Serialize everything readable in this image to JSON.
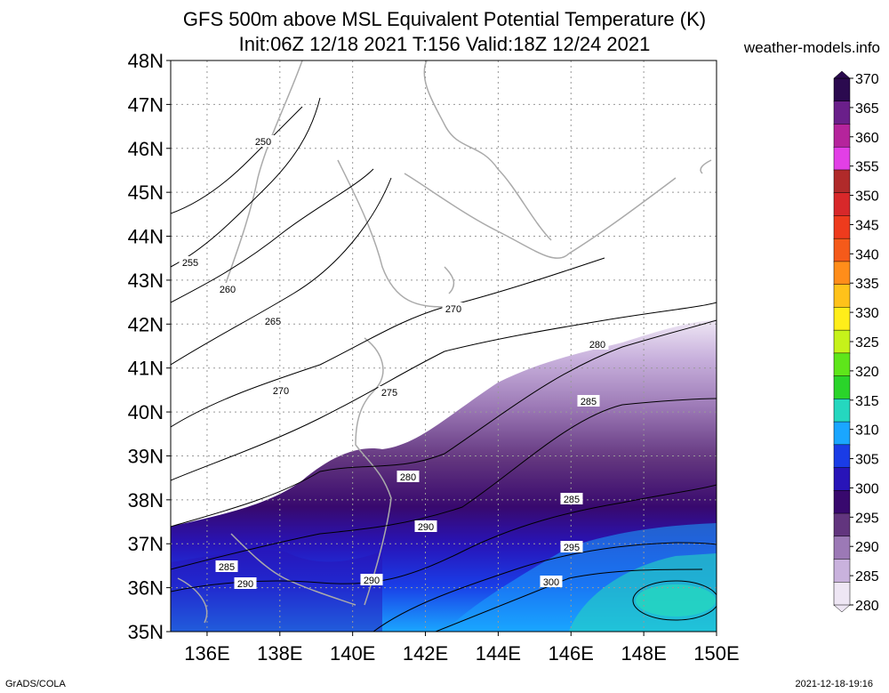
{
  "header": {
    "title": "GFS 500m above MSL Equivalent Potential Temperature (K)",
    "subtitle": "Init:06Z 12/18 2021 T:156 Valid:18Z 12/24 2021",
    "site": "weather-models.info"
  },
  "footer": {
    "left": "GrADS/COLA",
    "right": "2021-12-18-19:16"
  },
  "map": {
    "lat_labels": [
      "48N",
      "47N",
      "46N",
      "45N",
      "44N",
      "43N",
      "42N",
      "41N",
      "40N",
      "39N",
      "38N",
      "37N",
      "36N",
      "35N"
    ],
    "lon_labels": [
      "136E",
      "138E",
      "140E",
      "142E",
      "144E",
      "146E",
      "148E",
      "150E"
    ],
    "contour_labels": [
      "250",
      "255",
      "260",
      "265",
      "270",
      "270",
      "275",
      "280",
      "280",
      "285",
      "285",
      "290",
      "290",
      "285",
      "290",
      "295",
      "300"
    ]
  },
  "colorbar": {
    "labels": [
      "370",
      "365",
      "360",
      "355",
      "350",
      "345",
      "340",
      "335",
      "330",
      "325",
      "320",
      "315",
      "310",
      "305",
      "300",
      "295",
      "290",
      "285",
      "280"
    ],
    "colors": [
      "#2b0a4f",
      "#6a1f8a",
      "#b5249c",
      "#e23fe6",
      "#b02a2a",
      "#d8282a",
      "#ee3b1d",
      "#f55a1a",
      "#ff8d1a",
      "#ffc21a",
      "#ffee1a",
      "#c6f21a",
      "#5ee61a",
      "#2ad42a",
      "#25d7bf",
      "#1aa6ff",
      "#1a3ce6",
      "#2814b8",
      "#38096e",
      "#62357e",
      "#9c79b6",
      "#c9b2dd",
      "#eee6f4"
    ]
  }
}
